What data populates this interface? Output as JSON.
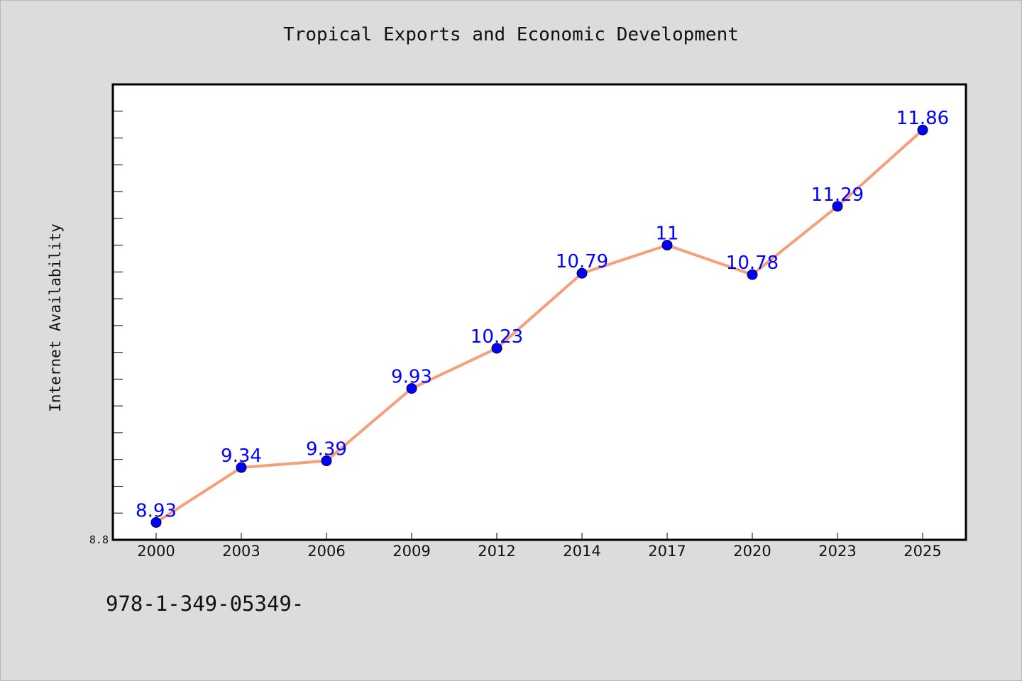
{
  "chart_data": {
    "type": "line",
    "title": "Tropical Exports and Economic Development",
    "xlabel": "",
    "ylabel": "Internet Availability",
    "categories": [
      "2000",
      "2003",
      "2006",
      "2009",
      "2012",
      "2014",
      "2017",
      "2020",
      "2023",
      "2025"
    ],
    "series": [
      {
        "values": [
          8.93,
          9.34,
          9.39,
          9.93,
          10.23,
          10.79,
          11,
          10.78,
          11.29,
          11.86
        ],
        "data_labels": [
          "8.93",
          "9.34",
          "9.39",
          "9.93",
          "10.23",
          "10.79",
          "11",
          "10.78",
          "11.29",
          "11.86"
        ]
      }
    ],
    "ylim": [
      8.8,
      12.2
    ],
    "y_tick_labels": [
      "8.8"
    ],
    "grid": false,
    "legend": "none",
    "colors": {
      "line": "#f4a07a",
      "marker": "#0000ff",
      "data_label": "#0000ff",
      "background": "#dcdcdc",
      "plot_background": "#ffffff"
    }
  },
  "footnote": "978-1-349-05349-"
}
